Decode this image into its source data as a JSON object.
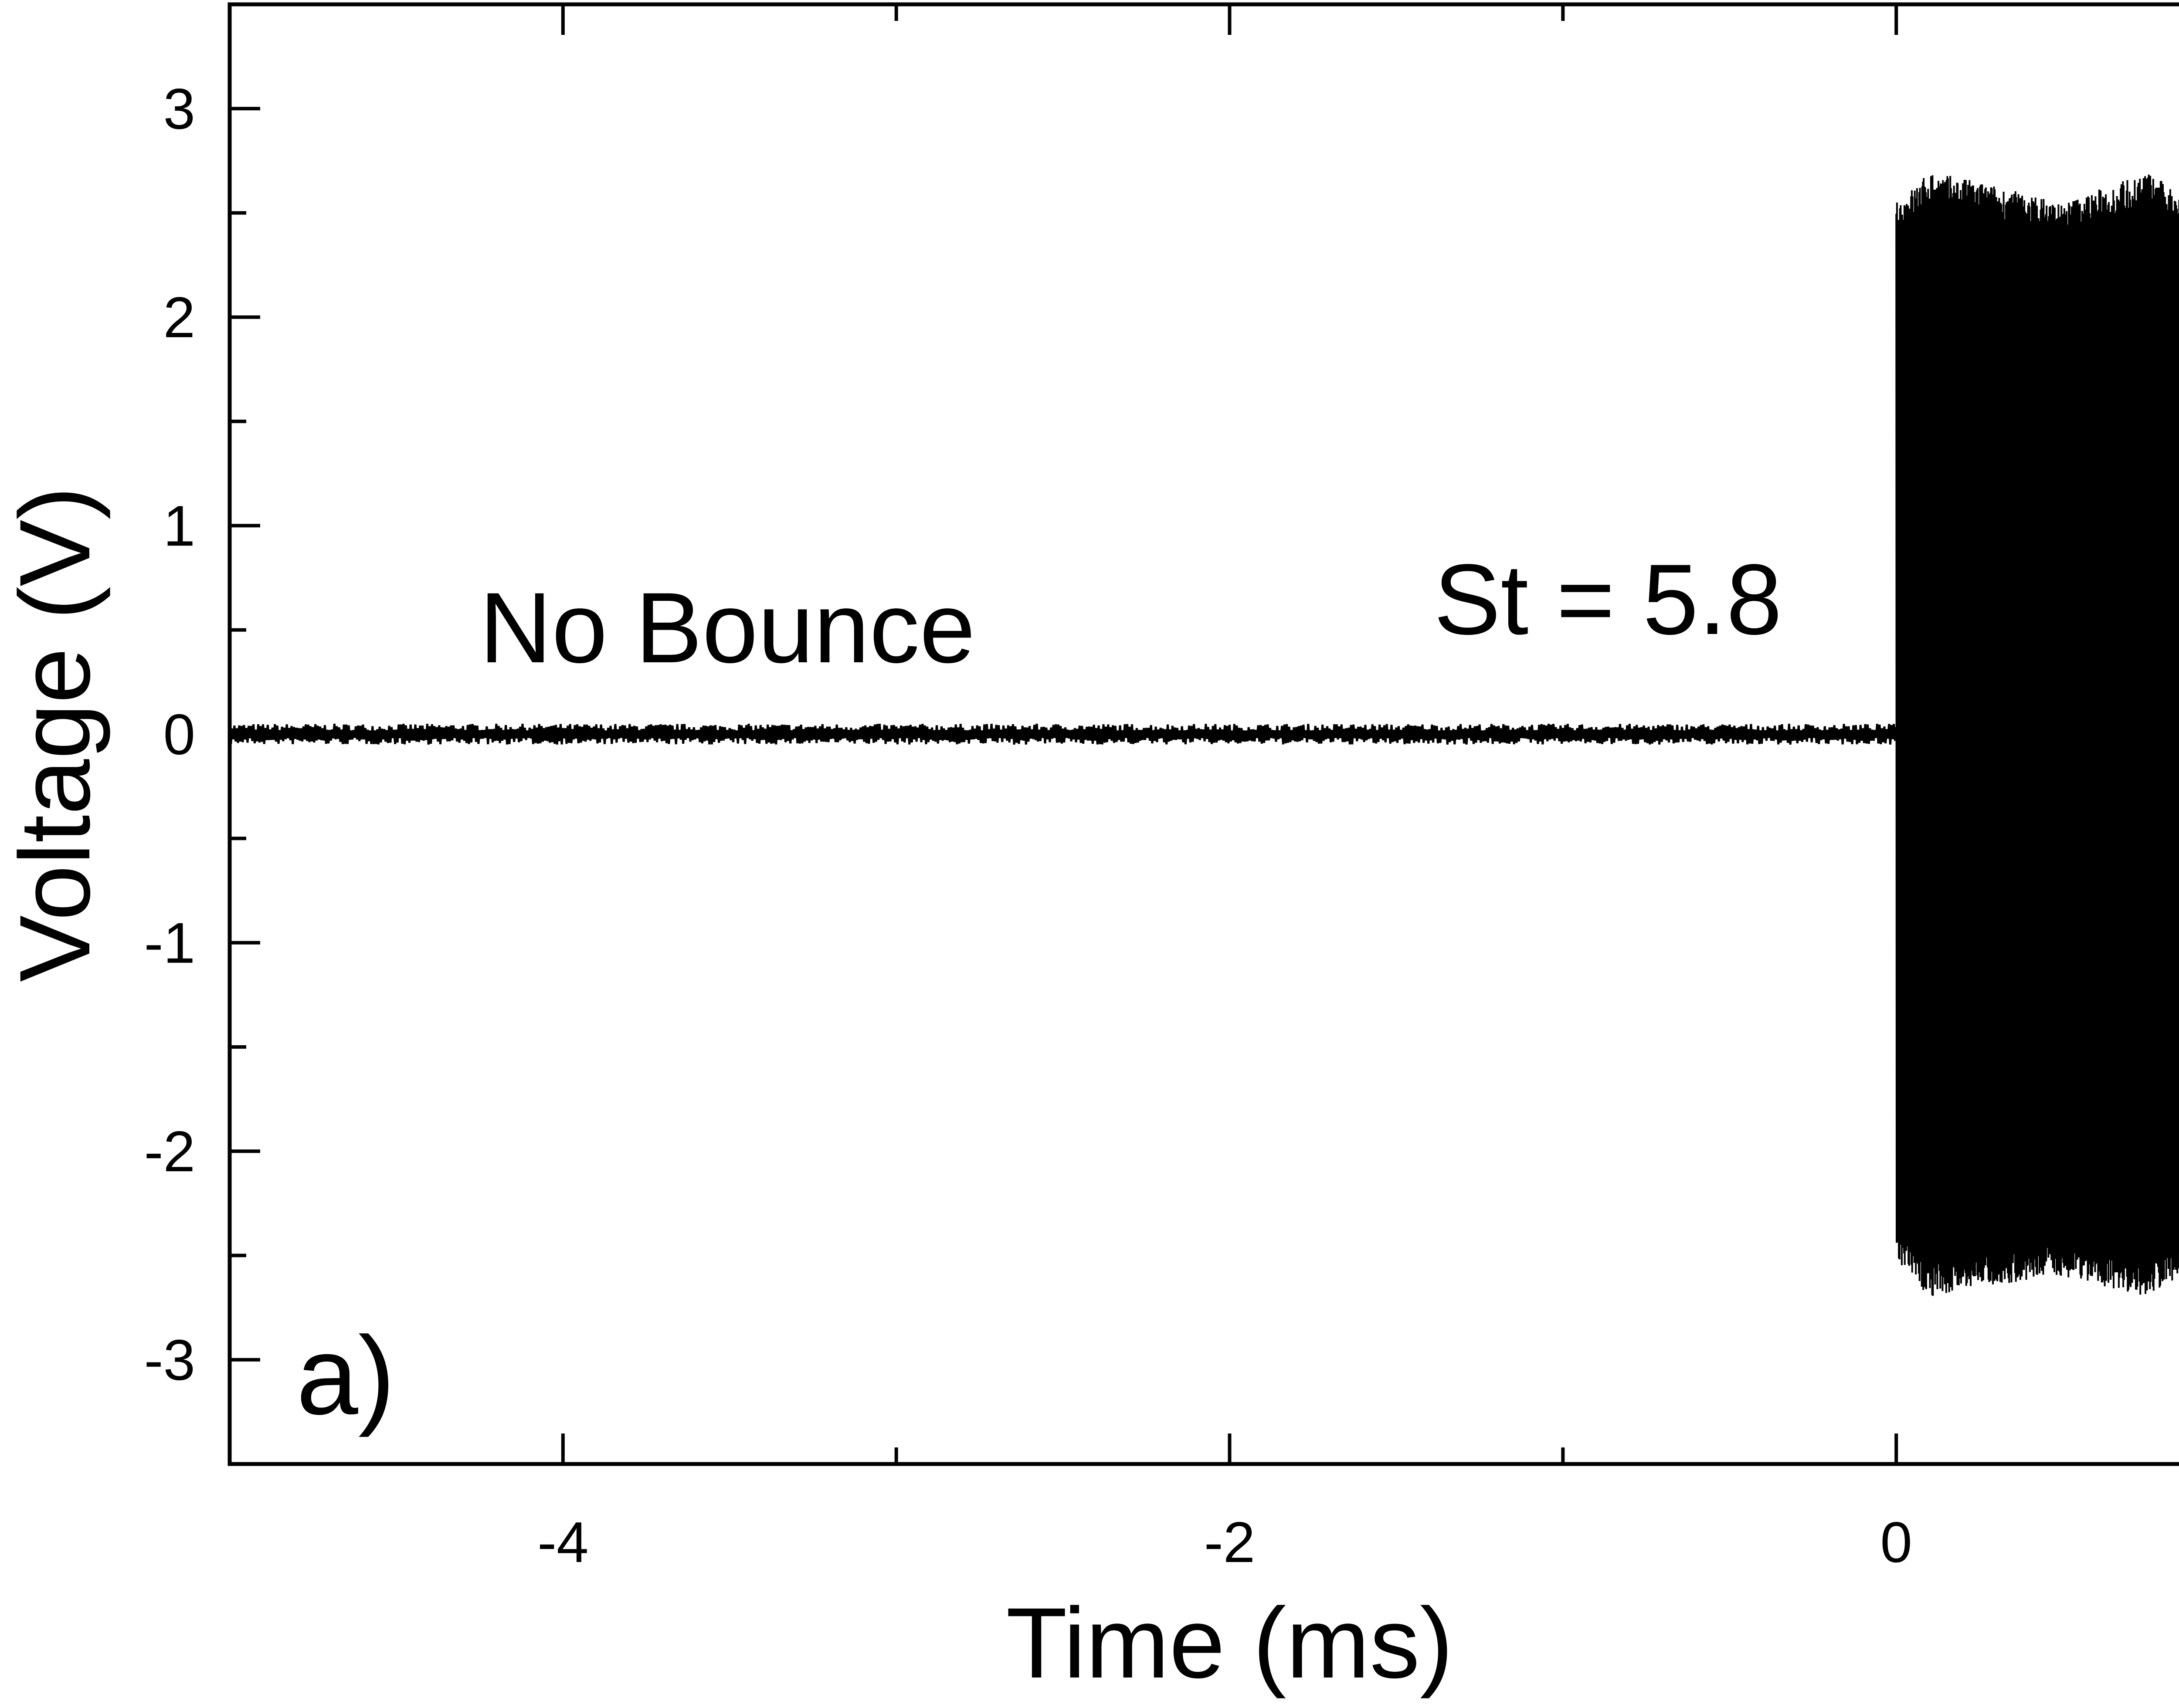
{
  "chart_data": {
    "type": "line",
    "xlabel": "Time (ms)",
    "ylabel": "Voltage (V)",
    "xlim": [
      -5.0,
      1.0
    ],
    "ylim": [
      -3.5,
      3.5
    ],
    "x_ticks": [
      -4,
      -2,
      0
    ],
    "x_tick_labels": [
      "-4",
      "-2",
      "0"
    ],
    "x_minor_ticks": [
      -5,
      -3,
      -1,
      1
    ],
    "y_ticks": [
      -3,
      -2,
      -1,
      0,
      1,
      2,
      3
    ],
    "y_tick_labels": [
      "-3",
      "-2",
      "-1",
      "0",
      "1",
      "2",
      "3"
    ],
    "y_minor_ticks": [
      -2.5,
      -1.5,
      -0.5,
      0.5,
      1.5,
      2.5
    ],
    "grid": false,
    "annotations": [
      "No Bounce",
      "St = 5.8",
      "a)"
    ],
    "series": [
      {
        "segments": [
          {
            "x_start": -5.0,
            "x_end": 0.0,
            "amplitude": 0.05,
            "description": "noise around 0 V"
          },
          {
            "x_start": 0.0,
            "x_end": 1.0,
            "amplitude": 2.6,
            "description": "dense oscillation"
          }
        ],
        "x": [
          -5.0,
          -4.0,
          -3.0,
          -2.0,
          -1.0,
          0.0,
          0.0,
          0.1,
          0.25,
          0.5,
          0.75,
          0.85,
          1.0
        ],
        "y_max": [
          0.06,
          0.06,
          0.06,
          0.06,
          0.06,
          0.06,
          2.55,
          2.7,
          2.65,
          2.55,
          2.7,
          2.6,
          2.55
        ],
        "y_min": [
          -0.06,
          -0.06,
          -0.06,
          -0.06,
          -0.06,
          -0.06,
          -2.55,
          -2.7,
          -2.65,
          -2.6,
          -2.7,
          -2.6,
          -2.55
        ]
      }
    ]
  }
}
